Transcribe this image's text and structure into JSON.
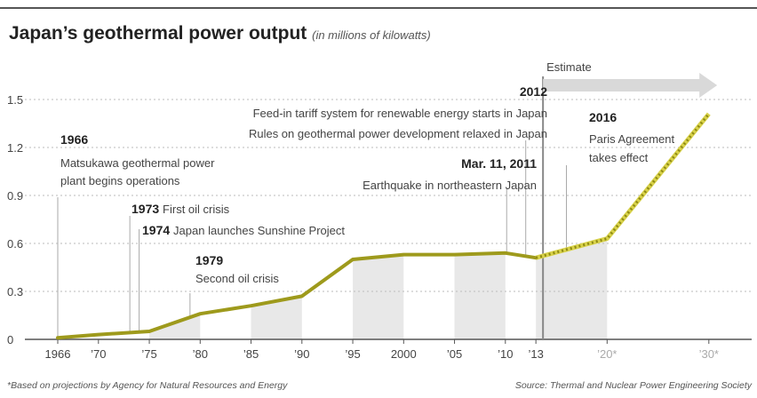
{
  "chart_data": {
    "type": "line",
    "title": "Japan’s geothermal power output",
    "subtitle": "(in millions of kilowatts)",
    "x_ticks": [
      "1966",
      "’70",
      "’75",
      "’80",
      "’85",
      "’90",
      "’95",
      "2000",
      "’05",
      "’10",
      "’13",
      "’20*",
      "’30*"
    ],
    "y_ticks": [
      "0",
      "0.3",
      "0.6",
      "0.9",
      "1.2",
      "1.5"
    ],
    "ylim": [
      0,
      1.5
    ],
    "xlim": [
      1965,
      2031
    ],
    "grid": "horizontal dashed",
    "series": [
      {
        "points": [
          [
            1966,
            0.01
          ],
          [
            1970,
            0.03
          ],
          [
            1975,
            0.05
          ],
          [
            1980,
            0.16
          ],
          [
            1985,
            0.21
          ],
          [
            1990,
            0.27
          ],
          [
            1995,
            0.5
          ],
          [
            2000,
            0.53
          ],
          [
            2005,
            0.53
          ],
          [
            2010,
            0.54
          ],
          [
            2013,
            0.51
          ]
        ]
      },
      {
        "estimate": true,
        "points": [
          [
            2013,
            0.51
          ],
          [
            2020,
            0.63
          ],
          [
            2030,
            1.41
          ]
        ]
      }
    ],
    "estimate_label": "Estimate",
    "annotations": [
      {
        "year": 1966,
        "bold": "1966",
        "lines": [
          "Matsukawa geothermal power",
          "plant begins operations"
        ]
      },
      {
        "year": 1973,
        "bold": "1973",
        "text": "First oil crisis"
      },
      {
        "year": 1974,
        "bold": "1974",
        "text": "Japan launches Sunshine Project"
      },
      {
        "year": 1979,
        "bold": "1979",
        "lines": [
          "Second oil crisis"
        ]
      },
      {
        "year": 2011,
        "bold": "Mar. 11, 2011",
        "lines": [
          "Earthquake in northeastern Japan"
        ]
      },
      {
        "year": 2012,
        "bold": "2012",
        "lines": [
          "Feed-in tariff system for renewable energy starts in Japan",
          "Rules on geothermal power development relaxed in Japan"
        ]
      },
      {
        "year": 2016,
        "bold": "2016",
        "lines": [
          "Paris Agreement",
          "takes effect"
        ]
      }
    ],
    "footnote": "*Based on projections by Agency for Natural Resources and Energy",
    "source": "Source: Thermal and Nuclear Power Engineering Society"
  }
}
